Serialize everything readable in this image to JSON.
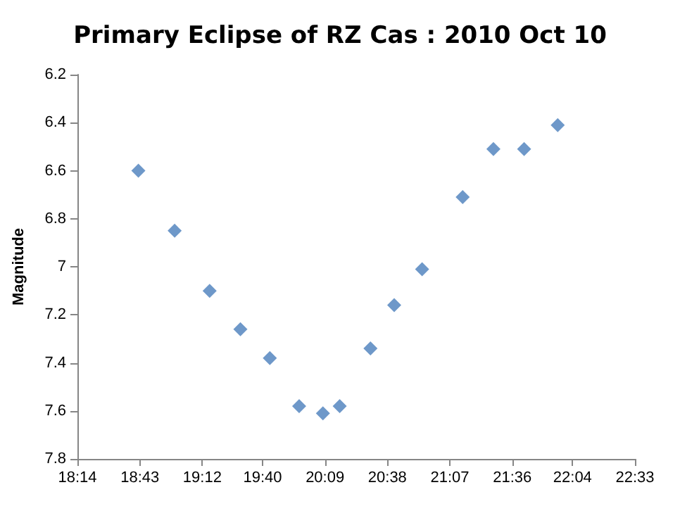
{
  "chart_data": {
    "type": "scatter",
    "title": "Primary Eclipse of RZ Cas : 2010 Oct 10",
    "ylabel": "Magnitude",
    "x": [
      18.705,
      18.986,
      19.257,
      19.495,
      19.723,
      19.95,
      20.134,
      20.264,
      20.502,
      20.686,
      20.902,
      21.216,
      21.454,
      21.692,
      21.952
    ],
    "values": [
      6.6,
      6.85,
      7.1,
      7.26,
      7.38,
      7.58,
      7.61,
      7.58,
      7.34,
      7.16,
      7.01,
      6.71,
      6.51,
      6.51,
      6.41
    ],
    "color": "#4a7ebb",
    "marker": "diamond",
    "grid": false,
    "xlim": [
      18.2333,
      22.55
    ],
    "xticks": [
      {
        "value": 18.2333,
        "label": "18:14"
      },
      {
        "value": 18.7167,
        "label": "18:43"
      },
      {
        "value": 19.2,
        "label": "19:12"
      },
      {
        "value": 19.6667,
        "label": "19:40"
      },
      {
        "value": 20.15,
        "label": "20:09"
      },
      {
        "value": 20.6333,
        "label": "20:38"
      },
      {
        "value": 21.1167,
        "label": "21:07"
      },
      {
        "value": 21.6,
        "label": "21:36"
      },
      {
        "value": 22.0667,
        "label": "22:04"
      },
      {
        "value": 22.55,
        "label": "22:33"
      }
    ],
    "ylim": [
      7.8,
      6.2
    ],
    "yticks": [
      {
        "value": 6.2,
        "label": "6.2"
      },
      {
        "value": 6.4,
        "label": "6.4"
      },
      {
        "value": 6.6,
        "label": "6.6"
      },
      {
        "value": 6.8,
        "label": "6.8"
      },
      7,
      {
        "value": 7.2,
        "label": "7.2"
      },
      {
        "value": 7.4,
        "label": "7.4"
      },
      {
        "value": 7.6,
        "label": "7.6"
      },
      {
        "value": 7.8,
        "label": "7.8"
      }
    ]
  }
}
